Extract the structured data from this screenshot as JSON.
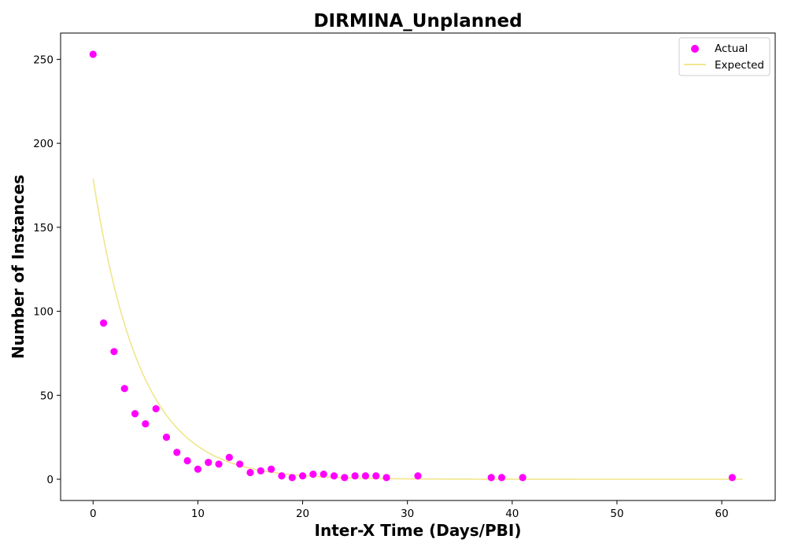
{
  "chart_data": {
    "type": "scatter",
    "title": "DIRMINA_Unplanned",
    "xlabel": "Inter-X Time (Days/PBI)",
    "ylabel": "Number of Instances",
    "xlim": [
      -3.1,
      65.1
    ],
    "ylim": [
      -12.65,
      265.65
    ],
    "xticks": [
      0,
      10,
      20,
      30,
      40,
      50,
      60
    ],
    "yticks": [
      0,
      50,
      100,
      150,
      200,
      250
    ],
    "grid": false,
    "legend_position": "top-right",
    "series": [
      {
        "name": "Actual",
        "kind": "scatter",
        "color": "#ff00ff",
        "points": [
          [
            0,
            253
          ],
          [
            1,
            93
          ],
          [
            2,
            76
          ],
          [
            3,
            54
          ],
          [
            4,
            39
          ],
          [
            5,
            33
          ],
          [
            6,
            42
          ],
          [
            7,
            25
          ],
          [
            8,
            16
          ],
          [
            9,
            11
          ],
          [
            10,
            6
          ],
          [
            11,
            10
          ],
          [
            12,
            9
          ],
          [
            13,
            13
          ],
          [
            14,
            9
          ],
          [
            15,
            4
          ],
          [
            16,
            5
          ],
          [
            17,
            6
          ],
          [
            18,
            2
          ],
          [
            19,
            1
          ],
          [
            20,
            2
          ],
          [
            21,
            3
          ],
          [
            22,
            3
          ],
          [
            23,
            2
          ],
          [
            24,
            1
          ],
          [
            25,
            2
          ],
          [
            26,
            2
          ],
          [
            27,
            2
          ],
          [
            28,
            1
          ],
          [
            31,
            2
          ],
          [
            38,
            1
          ],
          [
            39,
            1
          ],
          [
            41,
            1
          ],
          [
            61,
            1
          ]
        ]
      },
      {
        "name": "Expected",
        "kind": "line",
        "color": "#f0e68c",
        "model": {
          "form": "a*exp(-b*x)",
          "a": 179,
          "b": 0.2208,
          "x_range": [
            0,
            62
          ]
        }
      }
    ]
  }
}
